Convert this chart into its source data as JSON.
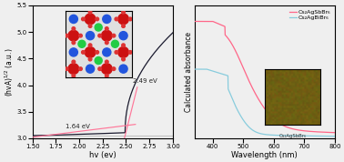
{
  "fig_width": 3.78,
  "fig_height": 1.78,
  "dpi": 100,
  "bg_color": "#efefef",
  "left_xlabel": "hv (ev)",
  "left_ylabel": "(hvA)$^{1/2}$ (a.u.)",
  "left_xlim": [
    1.5,
    3.0
  ],
  "left_ylim": [
    3.0,
    5.5
  ],
  "left_yticks": [
    3.0,
    3.5,
    4.0,
    4.5,
    5.0,
    5.5
  ],
  "left_xticks": [
    1.5,
    1.75,
    2.0,
    2.25,
    2.5,
    2.75,
    3.0
  ],
  "annotation1_text": "1.64 eV",
  "annotation2_text": "2.49 eV",
  "right_xlabel": "Wavelength (nm)",
  "right_ylabel": "Calculated absorbance",
  "right_xlim": [
    340,
    800
  ],
  "right_xticks": [
    400,
    500,
    600,
    700,
    800
  ],
  "legend_labels": [
    "Cs₂AgSbBr₆",
    "Cs₂AgBiBr₆"
  ],
  "color_sb": "#ff6688",
  "color_bi": "#88ccdd",
  "inset_photo_label": "Cs₂AgSbBr₆",
  "photo_color": "#9a8020"
}
